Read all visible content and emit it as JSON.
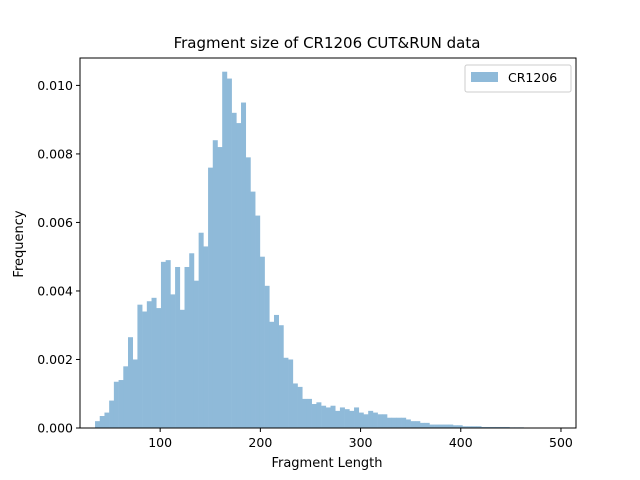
{
  "chart_data": {
    "type": "bar",
    "title": "Fragment size of CR1206 CUT&RUN data",
    "xlabel": "Fragment Length",
    "ylabel": "Frequency",
    "xlim": [
      20,
      515
    ],
    "ylim": [
      0,
      0.0108
    ],
    "x_ticks": [
      100,
      200,
      300,
      400,
      500
    ],
    "y_ticks": [
      0.0,
      0.002,
      0.004,
      0.006,
      0.008,
      0.01
    ],
    "y_tick_labels": [
      "0.000",
      "0.002",
      "0.004",
      "0.006",
      "0.008",
      "0.010"
    ],
    "legend": {
      "placement": "top-right",
      "label": "CR1206"
    },
    "color": "#8fbad9",
    "bin_width": 4.7,
    "series": [
      {
        "name": "CR1206",
        "bin_starts": [
          35.0,
          39.7,
          44.4,
          49.1,
          53.8,
          58.5,
          63.2,
          67.9,
          72.6,
          77.3,
          82.0,
          86.7,
          91.4,
          96.1,
          100.8,
          105.5,
          110.2,
          114.9,
          119.6,
          124.3,
          129.0,
          133.7,
          138.4,
          143.1,
          147.8,
          152.5,
          157.2,
          161.9,
          166.6,
          171.3,
          176.0,
          180.7,
          185.4,
          190.1,
          194.8,
          199.5,
          204.2,
          208.9,
          213.6,
          218.3,
          223.0,
          227.7,
          232.4,
          237.1,
          241.8,
          246.5,
          251.2,
          255.9,
          260.6,
          265.3,
          270.0,
          274.7,
          279.4,
          284.1,
          288.8,
          293.5,
          298.2,
          302.9,
          307.6,
          312.3,
          317.0,
          321.7,
          326.4,
          331.1,
          335.8,
          340.5,
          345.2,
          349.9,
          354.6,
          359.3,
          364.0,
          368.7,
          373.4,
          378.1,
          382.8,
          387.5,
          392.2,
          396.9,
          401.6,
          406.3,
          411.0,
          415.7,
          420.4,
          425.1,
          429.8,
          434.5,
          439.2,
          443.9,
          448.6,
          453.3,
          458.0
        ],
        "values": [
          0.0002,
          0.00035,
          0.00045,
          0.0008,
          0.00135,
          0.0014,
          0.0018,
          0.00265,
          0.002,
          0.0036,
          0.0034,
          0.0037,
          0.0038,
          0.0035,
          0.00485,
          0.0049,
          0.0039,
          0.0047,
          0.00345,
          0.0047,
          0.0051,
          0.0043,
          0.0057,
          0.0053,
          0.0076,
          0.0084,
          0.0082,
          0.0104,
          0.0102,
          0.0092,
          0.0089,
          0.0095,
          0.0079,
          0.0069,
          0.0062,
          0.005,
          0.00415,
          0.0031,
          0.0033,
          0.003,
          0.00205,
          0.002,
          0.0013,
          0.0012,
          0.00085,
          0.00085,
          0.0007,
          0.00075,
          0.00065,
          0.0006,
          0.00065,
          0.0005,
          0.0006,
          0.00055,
          0.0005,
          0.0006,
          0.00045,
          0.0004,
          0.0005,
          0.00045,
          0.0004,
          0.0004,
          0.0003,
          0.0003,
          0.0003,
          0.0003,
          0.00025,
          0.0002,
          0.0002,
          0.00015,
          0.00015,
          0.0001,
          0.0001,
          0.0001,
          0.0001,
          0.0001,
          8e-05,
          8e-05,
          5e-05,
          5e-05,
          5e-05,
          5e-05,
          3e-05,
          3e-05,
          3e-05,
          3e-05,
          3e-05,
          3e-05,
          2e-05,
          2e-05,
          2e-05
        ]
      }
    ]
  }
}
